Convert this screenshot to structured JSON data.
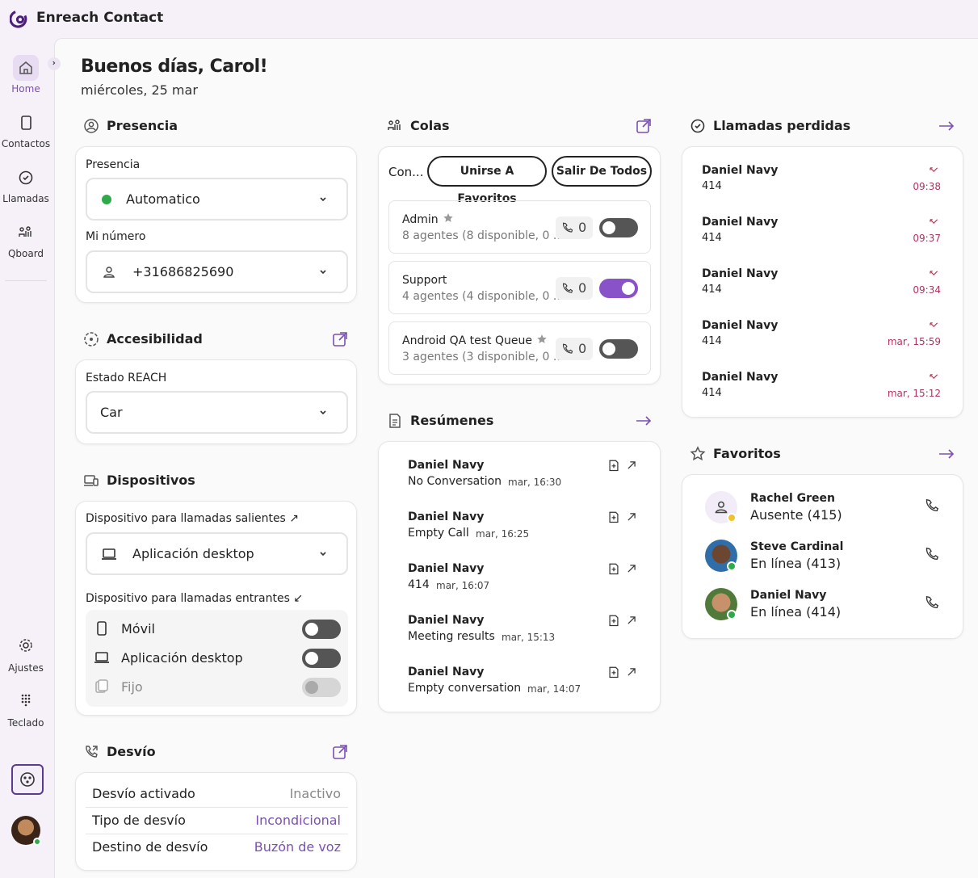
{
  "app": {
    "title": "Enreach Contact"
  },
  "sidebar": {
    "items": [
      "Home",
      "Contactos",
      "Llamadas",
      "Qboard"
    ],
    "bottom": [
      "Ajustes",
      "Teclado"
    ]
  },
  "greeting": {
    "title": "Buenos días, Carol!",
    "date": "miércoles, 25 mar"
  },
  "presencia": {
    "title": "Presencia",
    "label": "Presencia",
    "value": "Automatico",
    "number_label": "Mi número",
    "number": "+31686825690"
  },
  "accesibilidad": {
    "title": "Accesibilidad",
    "label": "Estado REACH",
    "value": "Car"
  },
  "dispositivos": {
    "title": "Dispositivos",
    "outgoing_label": "Dispositivo para llamadas salientes ↗",
    "outgoing": "Aplicación desktop",
    "incoming_label": "Dispositivo para llamadas entrantes ↙",
    "incoming": [
      {
        "name": "Móvil",
        "on": false,
        "disabled": false
      },
      {
        "name": "Aplicación desktop",
        "on": false,
        "disabled": false
      },
      {
        "name": "Fijo",
        "on": false,
        "disabled": true
      }
    ]
  },
  "desvio": {
    "title": "Desvío",
    "rows": [
      [
        "Desvío activado",
        "Inactivo"
      ],
      [
        "Tipo de desvío",
        "Incondicional"
      ],
      [
        "Destino de desvío",
        "Buzón de voz"
      ]
    ]
  },
  "colas": {
    "title": "Colas",
    "tab": "Con...",
    "buttons": [
      "Unirse A Favoritos",
      "Salir De Todos"
    ],
    "queues": [
      {
        "name": "Admin",
        "favorite": true,
        "agents": "8 agentes (8 disponible, 0 ...",
        "count": 0,
        "on": false
      },
      {
        "name": "Support",
        "favorite": false,
        "agents": "4 agentes (4 disponible, 0 ...",
        "count": 0,
        "on": true
      },
      {
        "name": "Android QA test Queue",
        "favorite": true,
        "agents": "3 agentes (3 disponible, 0 ...",
        "count": 0,
        "on": false
      }
    ]
  },
  "resumenes": {
    "title": "Resúmenes",
    "items": [
      {
        "name": "Daniel Navy",
        "text": "No Conversation",
        "time": "mar, 16:30"
      },
      {
        "name": "Daniel Navy",
        "text": "Empty Call",
        "time": "mar, 16:25"
      },
      {
        "name": "Daniel Navy",
        "text": "414",
        "time": "mar, 16:07"
      },
      {
        "name": "Daniel Navy",
        "text": "Meeting results",
        "time": "mar, 15:13"
      },
      {
        "name": "Daniel Navy",
        "text": "Empty conversation",
        "time": "mar, 14:07"
      }
    ]
  },
  "perdidas": {
    "title": "Llamadas perdidas",
    "items": [
      {
        "name": "Daniel Navy",
        "number": "414",
        "time": "09:38"
      },
      {
        "name": "Daniel Navy",
        "number": "414",
        "time": "09:37"
      },
      {
        "name": "Daniel Navy",
        "number": "414",
        "time": "09:34"
      },
      {
        "name": "Daniel Navy",
        "number": "414",
        "time": "mar, 15:59"
      },
      {
        "name": "Daniel Navy",
        "number": "414",
        "time": "mar, 15:12"
      }
    ]
  },
  "favoritos": {
    "title": "Favoritos",
    "items": [
      {
        "name": "Rachel Green",
        "status": "Ausente (415)"
      },
      {
        "name": "Steve Cardinal",
        "status": "En línea (413)"
      },
      {
        "name": "Daniel Navy",
        "status": "En línea (414)"
      }
    ]
  }
}
